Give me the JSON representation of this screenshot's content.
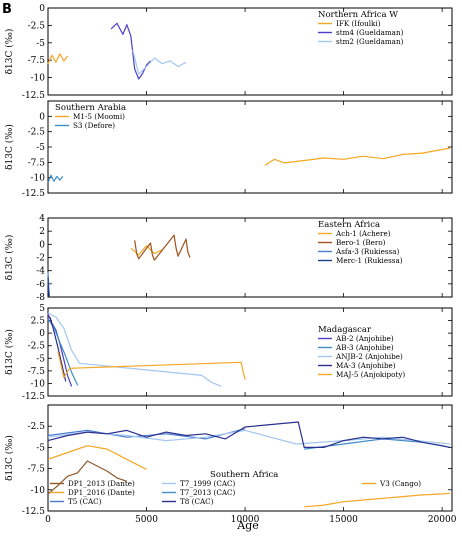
{
  "figure": {
    "panel_letter": "B",
    "xlabel": "Age"
  },
  "x_ticks": [
    0,
    5000,
    10000,
    15000,
    20000
  ],
  "chart_data": [
    {
      "type": "line",
      "title": "Northern Africa W",
      "ylabel": "δ13C (‰)",
      "xlim": [
        0,
        20500
      ],
      "ylim": [
        -12.5,
        0
      ],
      "yticks": [
        0,
        -2.5,
        -5,
        -7.5,
        -10,
        -12.5
      ],
      "legend_position": "top-right",
      "series": [
        {
          "name": "IFK (Ifoulki)",
          "color": "#f5a623",
          "x": [
            0,
            200,
            400,
            600,
            800,
            1000
          ],
          "y": [
            -8.0,
            -6.8,
            -7.8,
            -6.6,
            -7.6,
            -6.9
          ]
        },
        {
          "name": "stm4 (Gueldaman)",
          "color": "#4b3fc9",
          "x": [
            3200,
            3500,
            3800,
            4000,
            4200,
            4400,
            4600,
            4800,
            5000,
            5200
          ],
          "y": [
            -3.0,
            -2.2,
            -3.8,
            -2.4,
            -4.0,
            -8.8,
            -10.2,
            -9.4,
            -8.2,
            -7.6
          ]
        },
        {
          "name": "stm2 (Gueldaman)",
          "color": "#a3c7f0",
          "x": [
            4300,
            4600,
            5000,
            5400,
            5800,
            6200,
            6600,
            7000
          ],
          "y": [
            -6.0,
            -9.5,
            -8.4,
            -7.2,
            -8.0,
            -7.6,
            -8.4,
            -7.8
          ]
        }
      ]
    },
    {
      "type": "line",
      "title": "Southern Arabia",
      "ylabel": "δ13C (‰)",
      "xlim": [
        0,
        20500
      ],
      "ylim": [
        -12.5,
        2.5
      ],
      "yticks": [
        0,
        -2.5,
        -5,
        -7.5,
        -10,
        -12.5
      ],
      "legend_position": "top-left",
      "series": [
        {
          "name": "M1-5 (Moomi)",
          "color": "#f5a623",
          "x": [
            11000,
            11500,
            12000,
            13000,
            14000,
            15000,
            16000,
            17000,
            18000,
            19000,
            20000,
            20400
          ],
          "y": [
            -8.0,
            -7.0,
            -7.6,
            -7.2,
            -6.8,
            -7.0,
            -6.5,
            -6.9,
            -6.2,
            -6.0,
            -5.4,
            -5.2
          ]
        },
        {
          "name": "S3 (Defore)",
          "color": "#3e8ec9",
          "x": [
            0,
            150,
            300,
            450,
            600,
            750
          ],
          "y": [
            -10.8,
            -9.6,
            -10.6,
            -9.8,
            -10.4,
            -9.8
          ]
        }
      ]
    },
    {
      "type": "line",
      "title": "Eastern Africa",
      "ylabel": "δ13C (‰)",
      "xlim": [
        0,
        20500
      ],
      "ylim": [
        -8,
        4
      ],
      "yticks": [
        4,
        2,
        0,
        -2,
        -4,
        -6,
        -8
      ],
      "legend_position": "right",
      "series": [
        {
          "name": "Ach-1 (Achere)",
          "color": "#f5a623",
          "x": [
            4200,
            4600,
            5000,
            5400,
            5800
          ],
          "y": [
            -0.6,
            -1.6,
            -0.2,
            -1.4,
            -0.8
          ]
        },
        {
          "name": "Bero-1 (Bero)",
          "color": "#a0521d",
          "x": [
            4400,
            4500,
            4600,
            5200,
            5300,
            5400,
            6400,
            6500,
            6600,
            7000,
            7100,
            7200
          ],
          "y": [
            0.6,
            -1.4,
            -2.2,
            0.2,
            -1.6,
            -2.4,
            1.4,
            -0.6,
            -1.8,
            0.8,
            -1.2,
            -2.0
          ]
        },
        {
          "name": "Asfa-3 (Rukiessa)",
          "color": "#4a7bd0",
          "x": [
            0,
            30,
            60
          ],
          "y": [
            -4.2,
            -6.2,
            -7.6
          ]
        },
        {
          "name": "Merc-1 (Rukiessa)",
          "color": "#1c3f94",
          "x": [
            0,
            30,
            60
          ],
          "y": [
            -5.0,
            -6.8,
            -7.9
          ]
        }
      ]
    },
    {
      "type": "line",
      "title": "Madagascar",
      "ylabel": "δ13C (‰)",
      "xlim": [
        0,
        20500
      ],
      "ylim": [
        -12.5,
        5
      ],
      "yticks": [
        5,
        2.5,
        0,
        -2.5,
        -5,
        -7.5,
        -10,
        -12.5
      ],
      "legend_position": "right",
      "series": [
        {
          "name": "AB-2 (Anjohibe)",
          "color": "#4b3fc9",
          "x": [
            0,
            200,
            400,
            600,
            800,
            1000,
            1200
          ],
          "y": [
            3.8,
            2.0,
            0.6,
            -2.0,
            -5.2,
            -8.5,
            -10.6
          ]
        },
        {
          "name": "AB-3 (Anjohibe)",
          "color": "#3e8ec9",
          "x": [
            0,
            300,
            600,
            900,
            1200,
            1500
          ],
          "y": [
            2.8,
            1.2,
            -1.8,
            -4.6,
            -7.8,
            -10.4
          ]
        },
        {
          "name": "ANJB-2 (Anjohibe)",
          "color": "#a3c7f0",
          "x": [
            0,
            400,
            800,
            1200,
            1600,
            7800,
            8300,
            8800
          ],
          "y": [
            4.0,
            3.2,
            1.0,
            -3.4,
            -6.0,
            -8.4,
            -9.8,
            -10.6
          ]
        },
        {
          "name": "MA-3 (Anjohibe)",
          "color": "#2b2f8f",
          "x": [
            100,
            300,
            500,
            700,
            900
          ],
          "y": [
            3.2,
            0.4,
            -2.8,
            -6.2,
            -9.6
          ]
        },
        {
          "name": "MAJ-5 (Anjokipoty)",
          "color": "#f5a623",
          "x": [
            500,
            800,
            1100,
            9800,
            9900,
            10000
          ],
          "y": [
            -3.6,
            -8.8,
            -7.0,
            -5.8,
            -7.6,
            -9.2
          ]
        }
      ]
    },
    {
      "type": "line",
      "title": "Southern Africa",
      "ylabel": "δ13C (‰)",
      "xlim": [
        0,
        20500
      ],
      "ylim": [
        -12.5,
        0
      ],
      "yticks": [
        -2.5,
        -5,
        -7.5,
        -10,
        -12.5
      ],
      "legend_position": "bottom",
      "series": [
        {
          "name": "DP1_2013 (Dante)",
          "color": "#8b5a2b",
          "x": [
            0,
            500,
            1000,
            1500,
            2000,
            2500,
            3000,
            3500,
            4000
          ],
          "y": [
            -10.5,
            -9.5,
            -8.4,
            -8.0,
            -6.6,
            -7.2,
            -7.8,
            -8.6,
            -9.0
          ]
        },
        {
          "name": "DP1_2016 (Dante)",
          "color": "#f5a623",
          "x": [
            0,
            1000,
            2000,
            3000,
            4000,
            5000
          ],
          "y": [
            -6.4,
            -5.6,
            -4.8,
            -5.2,
            -6.4,
            -7.6
          ]
        },
        {
          "name": "T5 (CAC)",
          "color": "#4a7bd0",
          "x": [
            0,
            2000,
            4000,
            6000,
            8000,
            10000
          ],
          "y": [
            -3.6,
            -3.0,
            -3.8,
            -3.4,
            -4.0,
            -2.8
          ]
        },
        {
          "name": "T7_1999 (CAC)",
          "color": "#a3c7f0",
          "x": [
            0,
            2000,
            4000,
            6000,
            8000,
            10000,
            12600,
            15000,
            17000,
            20400
          ],
          "y": [
            -3.8,
            -3.2,
            -3.6,
            -4.2,
            -3.8,
            -3.0,
            -4.6,
            -4.2,
            -3.8,
            -4.6
          ]
        },
        {
          "name": "T7_2013 (CAC)",
          "color": "#3e8ec9",
          "x": [
            13000,
            15000,
            17000,
            19000,
            20400
          ],
          "y": [
            -5.2,
            -4.6,
            -4.0,
            -4.4,
            -5.0
          ]
        },
        {
          "name": "T8 (CAC)",
          "color": "#2b2f8f",
          "x": [
            0,
            1000,
            2000,
            3000,
            4000,
            5000,
            6000,
            7000,
            8000,
            9000,
            10000,
            12700,
            13000,
            14000,
            15000,
            16000,
            17000,
            18000,
            19000,
            20000,
            20400
          ],
          "y": [
            -4.2,
            -3.6,
            -3.2,
            -3.4,
            -3.0,
            -3.8,
            -3.2,
            -3.6,
            -3.4,
            -4.0,
            -2.6,
            -2.0,
            -5.0,
            -5.0,
            -4.2,
            -3.8,
            -4.0,
            -3.8,
            -4.4,
            -4.8,
            -5.0
          ]
        },
        {
          "name": "V3 (Cango)",
          "color": "#f5a623",
          "x": [
            13000,
            14000,
            15000,
            16000,
            17000,
            18000,
            19000,
            20000,
            20400
          ],
          "y": [
            -12.0,
            -11.8,
            -11.4,
            -11.2,
            -11.0,
            -10.8,
            -10.6,
            -10.5,
            -10.4
          ]
        }
      ]
    }
  ]
}
